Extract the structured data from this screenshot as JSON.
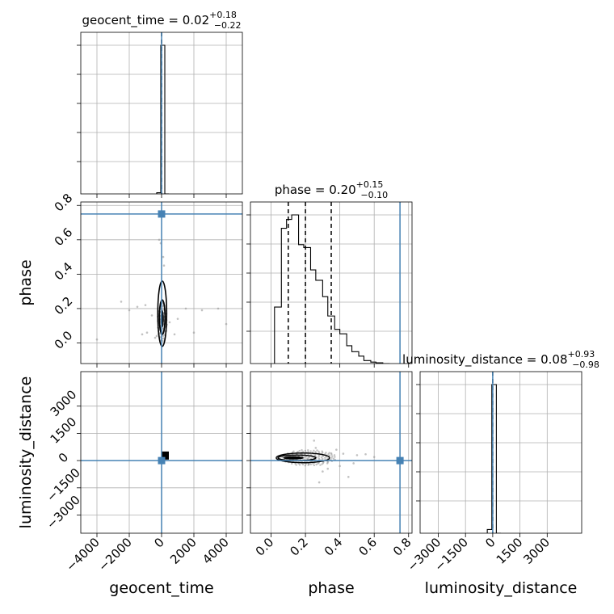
{
  "chart_data": {
    "type": "corner",
    "parameters": [
      "geocent_time",
      "phase",
      "luminosity_distance"
    ],
    "truths": {
      "geocent_time": 0,
      "phase": 0.75,
      "luminosity_distance": 0
    },
    "grid": true,
    "diagonal": [
      {
        "parameter": "geocent_time",
        "title_prefix": "geocent_time = 0.02",
        "title_plus": "+0.18",
        "title_minus": "−0.22",
        "xlim": [
          -5000,
          5000
        ],
        "quantiles": [
          0.02
        ],
        "bins": [
          {
            "lo": -300,
            "hi": -50,
            "h": 0.008
          },
          {
            "lo": -50,
            "hi": 200,
            "h": 1.0
          },
          {
            "lo": 200,
            "hi": 450,
            "h": 0.0
          }
        ]
      },
      {
        "parameter": "phase",
        "title_prefix": "phase = 0.20",
        "title_plus": "+0.15",
        "title_minus": "−0.10",
        "xlim": [
          -0.12,
          0.82
        ],
        "quantiles": [
          0.1,
          0.2,
          0.35
        ],
        "bins": [
          {
            "lo": 0.02,
            "hi": 0.06,
            "h": 0.38
          },
          {
            "lo": 0.06,
            "hi": 0.09,
            "h": 0.91
          },
          {
            "lo": 0.09,
            "hi": 0.12,
            "h": 0.97
          },
          {
            "lo": 0.12,
            "hi": 0.16,
            "h": 1.0
          },
          {
            "lo": 0.16,
            "hi": 0.19,
            "h": 0.8
          },
          {
            "lo": 0.19,
            "hi": 0.23,
            "h": 0.78
          },
          {
            "lo": 0.23,
            "hi": 0.26,
            "h": 0.63
          },
          {
            "lo": 0.26,
            "hi": 0.3,
            "h": 0.56
          },
          {
            "lo": 0.3,
            "hi": 0.33,
            "h": 0.45
          },
          {
            "lo": 0.33,
            "hi": 0.37,
            "h": 0.32
          },
          {
            "lo": 0.37,
            "hi": 0.4,
            "h": 0.23
          },
          {
            "lo": 0.4,
            "hi": 0.44,
            "h": 0.2
          },
          {
            "lo": 0.44,
            "hi": 0.47,
            "h": 0.12
          },
          {
            "lo": 0.47,
            "hi": 0.51,
            "h": 0.08
          },
          {
            "lo": 0.51,
            "hi": 0.54,
            "h": 0.05
          },
          {
            "lo": 0.54,
            "hi": 0.58,
            "h": 0.02
          },
          {
            "lo": 0.58,
            "hi": 0.61,
            "h": 0.01
          },
          {
            "lo": 0.61,
            "hi": 0.65,
            "h": 0.005
          },
          {
            "lo": 0.65,
            "hi": 0.69,
            "h": 0.0
          }
        ]
      },
      {
        "parameter": "luminosity_distance",
        "title_prefix": "luminosity_distance = 0.08",
        "title_plus": "+0.93",
        "title_minus": "−0.98",
        "xlim": [
          -4000,
          4900
        ],
        "quantiles": [
          0.08
        ],
        "bins": [
          {
            "lo": -300,
            "hi": -50,
            "h": 0.025
          },
          {
            "lo": -50,
            "hi": 200,
            "h": 1.0
          },
          {
            "lo": 200,
            "hi": 450,
            "h": 0.0
          }
        ]
      }
    ],
    "axes": {
      "geocent_time": {
        "range": [
          -5000,
          5000
        ],
        "ticks": [
          -4000,
          -2000,
          0,
          2000,
          4000
        ],
        "tick_labels": [
          "−4000",
          "−2000",
          "0",
          "2000",
          "4000"
        ]
      },
      "phase": {
        "range": [
          -0.12,
          0.82
        ],
        "ticks": [
          0.0,
          0.2,
          0.4,
          0.6,
          0.8
        ],
        "tick_labels": [
          "0.0",
          "0.2",
          "0.4",
          "0.6",
          "0.8"
        ]
      },
      "luminosity_distance": {
        "range": [
          -4000,
          4900
        ],
        "ticks": [
          -3000,
          -1500,
          0,
          1500,
          3000
        ],
        "tick_labels": [
          "−3000",
          "−1500",
          "0",
          "1500",
          "3000"
        ]
      }
    },
    "xlabels": [
      "geocent_time",
      "phase",
      "luminosity_distance"
    ],
    "ylabels": [
      "phase",
      "luminosity_distance"
    ],
    "scatter_outliers": {
      "geocent_time_phase": [
        [
          -4000,
          0.02
        ],
        [
          -2500,
          0.24
        ],
        [
          -2000,
          0.19
        ],
        [
          -1500,
          0.21
        ],
        [
          -1200,
          0.05
        ],
        [
          -1000,
          0.22
        ],
        [
          -900,
          0.06
        ],
        [
          -600,
          0.16
        ],
        [
          -400,
          0.03
        ],
        [
          -300,
          0.04
        ],
        [
          -200,
          0.17
        ],
        [
          -100,
          0.18
        ],
        [
          500,
          0.12
        ],
        [
          800,
          0.05
        ],
        [
          1000,
          0.14
        ],
        [
          1500,
          0.2
        ],
        [
          2000,
          0.06
        ],
        [
          2500,
          0.19
        ],
        [
          3500,
          0.2
        ],
        [
          4000,
          0.11
        ],
        [
          -150,
          0.6
        ],
        [
          -50,
          0.58
        ],
        [
          100,
          0.5
        ],
        [
          150,
          0.45
        ]
      ],
      "phase_luminosity_distance": [
        [
          0.25,
          1100
        ],
        [
          0.3,
          -600
        ],
        [
          0.28,
          -1200
        ],
        [
          0.35,
          400
        ],
        [
          0.42,
          380
        ],
        [
          0.5,
          300
        ],
        [
          0.55,
          350
        ],
        [
          0.4,
          -300
        ],
        [
          0.33,
          -450
        ],
        [
          0.22,
          -200
        ],
        [
          0.18,
          350
        ],
        [
          0.48,
          -150
        ],
        [
          0.6,
          200
        ],
        [
          0.26,
          700
        ],
        [
          0.38,
          600
        ],
        [
          0.45,
          -900
        ]
      ]
    }
  }
}
